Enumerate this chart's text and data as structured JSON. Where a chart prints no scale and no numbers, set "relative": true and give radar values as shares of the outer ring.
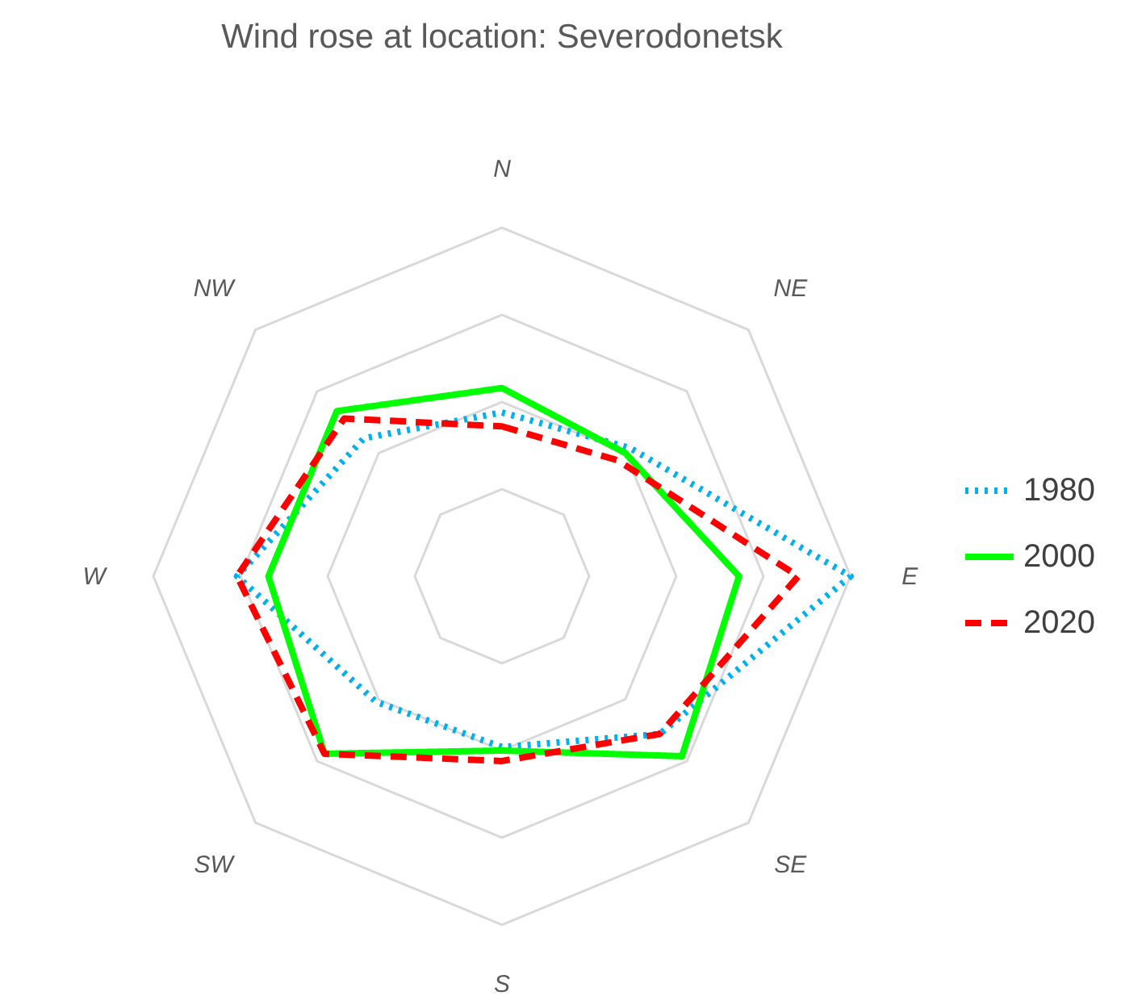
{
  "chart_data": {
    "type": "radar",
    "title": "Wind rose at location: Severodonetsk",
    "categories": [
      "N",
      "NE",
      "E",
      "SE",
      "S",
      "SW",
      "W",
      "NW"
    ],
    "relative": true,
    "grid": true,
    "legend": "right",
    "series": [
      {
        "name": "1980",
        "color": "#00b0f0",
        "line_style": "dotted",
        "values": [
          0.47,
          0.52,
          1.0,
          0.64,
          0.49,
          0.51,
          0.76,
          0.56
        ]
      },
      {
        "name": "2000",
        "color": "#00ff00",
        "line_style": "solid",
        "values": [
          0.54,
          0.5,
          0.68,
          0.73,
          0.5,
          0.72,
          0.67,
          0.67
        ]
      },
      {
        "name": "2020",
        "color": "#ff0000",
        "line_style": "dashed",
        "values": [
          0.43,
          0.47,
          0.85,
          0.64,
          0.53,
          0.72,
          0.76,
          0.64
        ]
      }
    ]
  }
}
